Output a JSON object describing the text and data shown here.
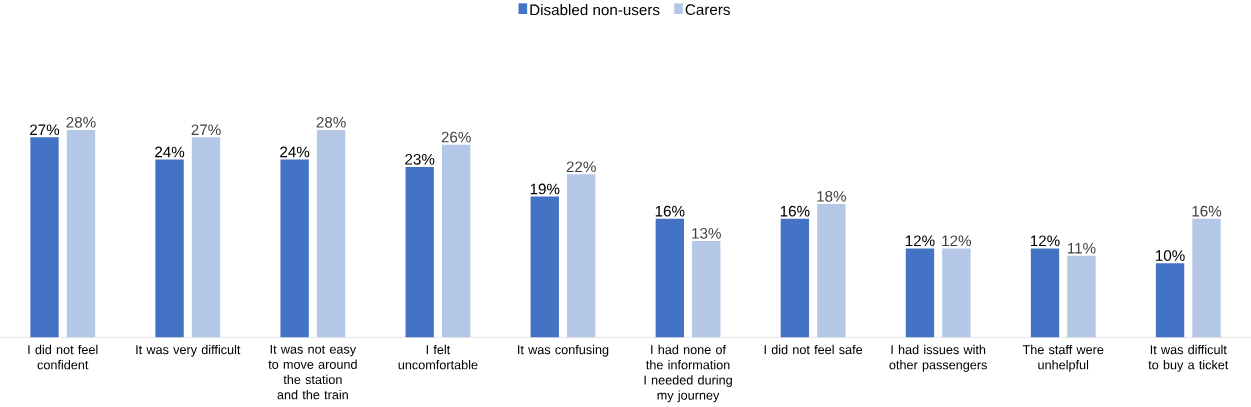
{
  "chart_data": {
    "type": "bar",
    "categories": [
      "I did not feel confident",
      "It was very difficult",
      "It was not easy to move around the station and the train",
      "I felt uncomfortable",
      "It was confusing",
      "I had none of the information I needed during my journey",
      "I did not feel safe",
      "I had issues with other passengers",
      "The staff were unhelpful",
      "It was difficult to buy a ticket"
    ],
    "series": [
      {
        "name": "Disabled non-users",
        "color": "#4472c4",
        "values": [
          27,
          24,
          24,
          23,
          19,
          16,
          16,
          12,
          12,
          10
        ],
        "value_labels": [
          "27%",
          "24%",
          "24%",
          "23%",
          "19%",
          "16%",
          "16%",
          "12%",
          "12%",
          "10%"
        ]
      },
      {
        "name": "Carers",
        "color": "#b4c7e7",
        "values": [
          28,
          27,
          28,
          26,
          22,
          13,
          18,
          12,
          11,
          16
        ],
        "value_labels": [
          "28%",
          "27%",
          "28%",
          "26%",
          "22%",
          "13%",
          "18%",
          "12%",
          "11%",
          "16%"
        ]
      }
    ],
    "legend": "top"
  }
}
